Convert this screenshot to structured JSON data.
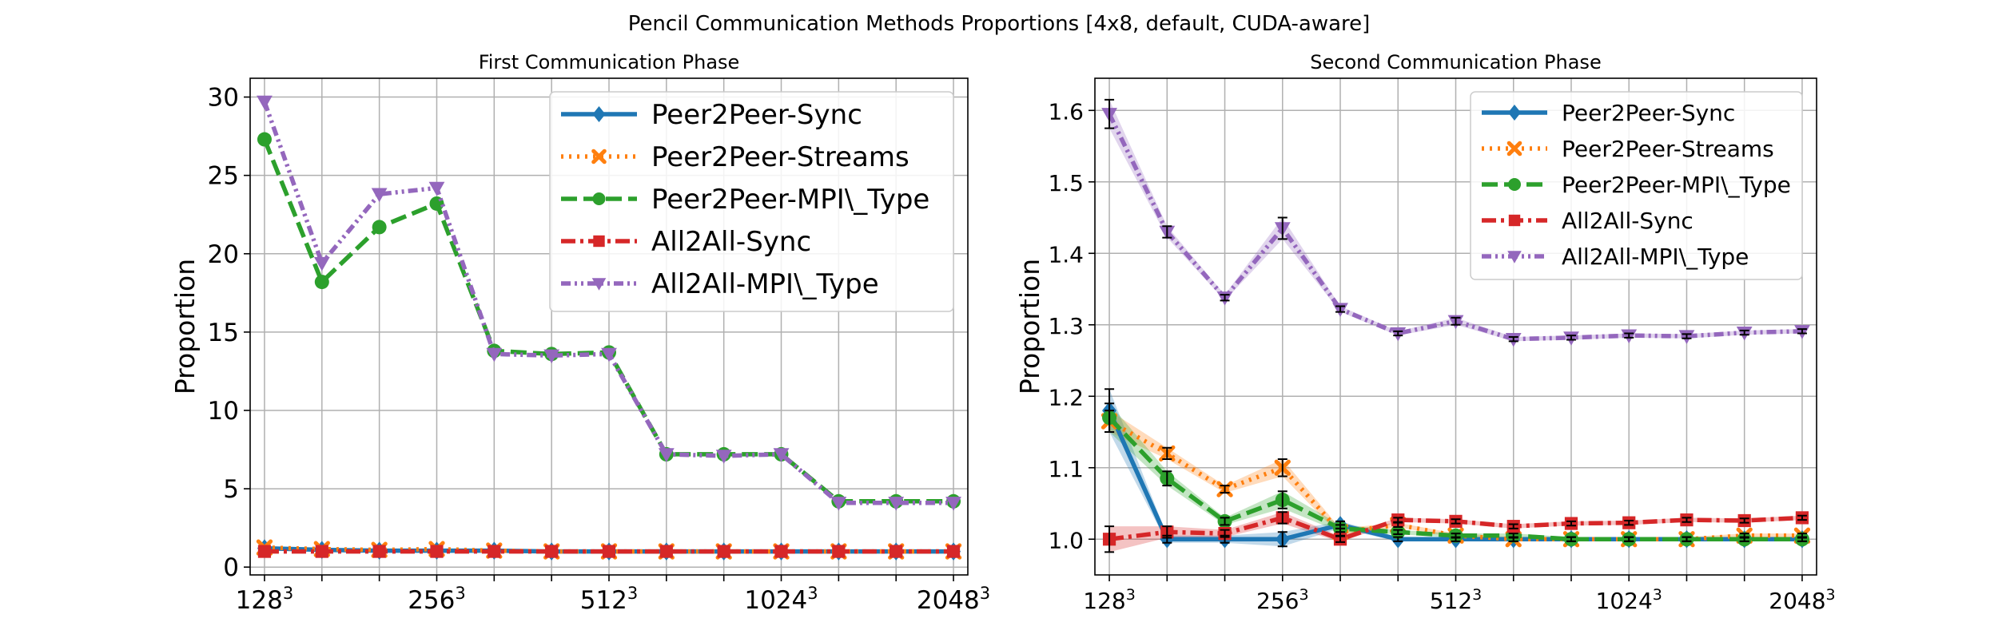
{
  "figure_title": "Pencil Communication Methods Proportions [4x8, default, CUDA-aware]",
  "chart_data": [
    {
      "type": "line",
      "title": "First Communication Phase",
      "xlabel": "",
      "ylabel": "Proportion",
      "x": [
        1,
        2,
        3,
        4,
        5,
        6,
        7,
        8,
        9,
        10,
        11,
        12,
        13
      ],
      "xticks": [
        {
          "base": "128",
          "exp": "3",
          "x": 1
        },
        {
          "base": "256",
          "exp": "3",
          "x": 4
        },
        {
          "base": "512",
          "exp": "3",
          "x": 7
        },
        {
          "base": "1024",
          "exp": "3",
          "x": 10
        },
        {
          "base": "2048",
          "exp": "3",
          "x": 13
        }
      ],
      "xlim": [
        0.75,
        13.25
      ],
      "ylim": [
        -0.5,
        31.2
      ],
      "yticks": [
        0,
        5,
        10,
        15,
        20,
        25,
        30
      ],
      "grid": true,
      "legend_position": "top-right",
      "series": [
        {
          "name": "Peer2Peer-Sync",
          "color": "#1f77b4",
          "marker": "diamond",
          "dash": "solid",
          "values": [
            1.2,
            1.1,
            1.05,
            1.05,
            1.05,
            1.0,
            1.0,
            1.0,
            1.0,
            1.0,
            1.0,
            1.0,
            1.0
          ]
        },
        {
          "name": "Peer2Peer-Streams",
          "color": "#ff7f0e",
          "marker": "x",
          "dash": "dotted",
          "values": [
            1.25,
            1.15,
            1.1,
            1.15,
            1.05,
            1.0,
            1.0,
            1.0,
            1.0,
            1.0,
            1.0,
            1.0,
            1.0
          ]
        },
        {
          "name": "Peer2Peer-MPI\\_Type",
          "color": "#2ca02c",
          "marker": "circle",
          "dash": "dashed",
          "values": [
            27.3,
            18.2,
            21.7,
            23.2,
            13.8,
            13.6,
            13.7,
            7.2,
            7.2,
            7.2,
            4.2,
            4.2,
            4.2
          ]
        },
        {
          "name": "All2All-Sync",
          "color": "#d62728",
          "marker": "square",
          "dash": "dashdot",
          "values": [
            1.0,
            1.0,
            1.0,
            1.0,
            1.0,
            1.0,
            1.0,
            1.0,
            1.0,
            1.0,
            1.0,
            1.0,
            1.0
          ]
        },
        {
          "name": "All2All-MPI\\_Type",
          "color": "#9467bd",
          "marker": "triangle-down",
          "dash": "dashdotdot",
          "values": [
            29.7,
            19.4,
            23.8,
            24.2,
            13.6,
            13.5,
            13.6,
            7.2,
            7.1,
            7.2,
            4.1,
            4.1,
            4.1
          ]
        }
      ]
    },
    {
      "type": "line",
      "title": "Second Communication Phase",
      "xlabel": "",
      "ylabel": "Proportion",
      "x": [
        1,
        2,
        3,
        4,
        5,
        6,
        7,
        8,
        9,
        10,
        11,
        12,
        13
      ],
      "xticks": [
        {
          "base": "128",
          "exp": "3",
          "x": 1
        },
        {
          "base": "256",
          "exp": "3",
          "x": 4
        },
        {
          "base": "512",
          "exp": "3",
          "x": 7
        },
        {
          "base": "1024",
          "exp": "3",
          "x": 10
        },
        {
          "base": "2048",
          "exp": "3",
          "x": 13
        }
      ],
      "xlim": [
        0.75,
        13.25
      ],
      "ylim": [
        0.95,
        1.645
      ],
      "yticks": [
        1.0,
        1.1,
        1.2,
        1.3,
        1.4,
        1.5,
        1.6
      ],
      "grid": true,
      "legend_position": "top-right",
      "series": [
        {
          "name": "Peer2Peer-Sync",
          "color": "#1f77b4",
          "marker": "diamond",
          "dash": "solid",
          "values": [
            1.18,
            1.0,
            1.0,
            1.0,
            1.02,
            1.0,
            1.0,
            1.0,
            1.0,
            1.0,
            1.0,
            1.0,
            1.0
          ],
          "err": [
            0.03,
            0.005,
            0.005,
            0.01,
            0.005,
            0.003,
            0.003,
            0.003,
            0.003,
            0.003,
            0.003,
            0.003,
            0.003
          ]
        },
        {
          "name": "Peer2Peer-Streams",
          "color": "#ff7f0e",
          "marker": "x",
          "dash": "dotted",
          "values": [
            1.165,
            1.12,
            1.07,
            1.1,
            1.01,
            1.02,
            1.005,
            1.0,
            1.0,
            1.0,
            1.0,
            1.005,
            1.005
          ],
          "err": [
            0.015,
            0.008,
            0.005,
            0.012,
            0.005,
            0.003,
            0.003,
            0.003,
            0.003,
            0.003,
            0.003,
            0.003,
            0.003
          ]
        },
        {
          "name": "Peer2Peer-MPI\\_Type",
          "color": "#2ca02c",
          "marker": "circle",
          "dash": "dashed",
          "values": [
            1.17,
            1.085,
            1.025,
            1.055,
            1.015,
            1.01,
            1.005,
            1.005,
            1.0,
            1.0,
            1.0,
            1.0,
            1.0
          ],
          "err": [
            0.02,
            0.01,
            0.005,
            0.012,
            0.005,
            0.003,
            0.003,
            0.003,
            0.003,
            0.003,
            0.003,
            0.003,
            0.003
          ]
        },
        {
          "name": "All2All-Sync",
          "color": "#d62728",
          "marker": "square",
          "dash": "dashdot",
          "values": [
            1.0,
            1.01,
            1.008,
            1.03,
            1.0,
            1.027,
            1.025,
            1.018,
            1.022,
            1.023,
            1.027,
            1.026,
            1.03
          ],
          "err": [
            0.018,
            0.008,
            0.005,
            0.008,
            0.004,
            0.003,
            0.003,
            0.003,
            0.003,
            0.003,
            0.003,
            0.003,
            0.003
          ]
        },
        {
          "name": "All2All-MPI\\_Type",
          "color": "#9467bd",
          "marker": "triangle-down",
          "dash": "dashdotdot",
          "values": [
            1.595,
            1.43,
            1.338,
            1.435,
            1.322,
            1.288,
            1.305,
            1.28,
            1.282,
            1.285,
            1.284,
            1.289,
            1.291
          ],
          "err": [
            0.02,
            0.008,
            0.004,
            0.015,
            0.004,
            0.003,
            0.005,
            0.003,
            0.003,
            0.003,
            0.003,
            0.003,
            0.003
          ]
        }
      ]
    }
  ]
}
